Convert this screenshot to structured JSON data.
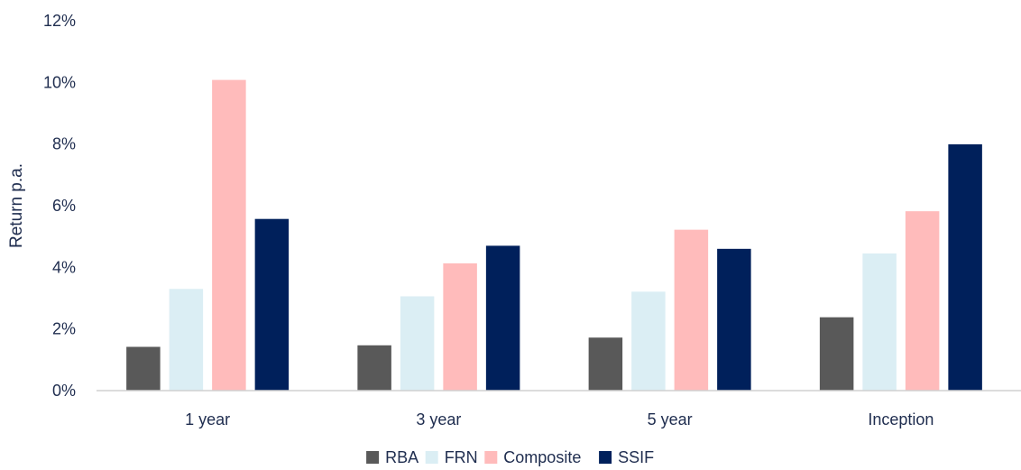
{
  "chart_data": {
    "type": "bar",
    "title": "",
    "xlabel": "",
    "ylabel": "Return p.a.",
    "ylim": [
      0,
      12
    ],
    "y_tick_step": 2,
    "y_tick_suffix": "%",
    "grid": false,
    "legend_position": "bottom",
    "categories": [
      "1 year",
      "3 year",
      "5 year",
      "Inception"
    ],
    "series": [
      {
        "name": "RBA",
        "color": "#595959",
        "values": [
          1.42,
          1.47,
          1.72,
          2.38
        ]
      },
      {
        "name": "FRN",
        "color": "#dbeef4",
        "values": [
          3.3,
          3.06,
          3.21,
          4.45
        ]
      },
      {
        "name": "Composite",
        "color": "#ffbbbb",
        "values": [
          10.08,
          4.13,
          5.22,
          5.82
        ]
      },
      {
        "name": "SSIF",
        "color": "#00205b",
        "values": [
          5.57,
          4.7,
          4.6,
          7.99
        ]
      }
    ]
  }
}
